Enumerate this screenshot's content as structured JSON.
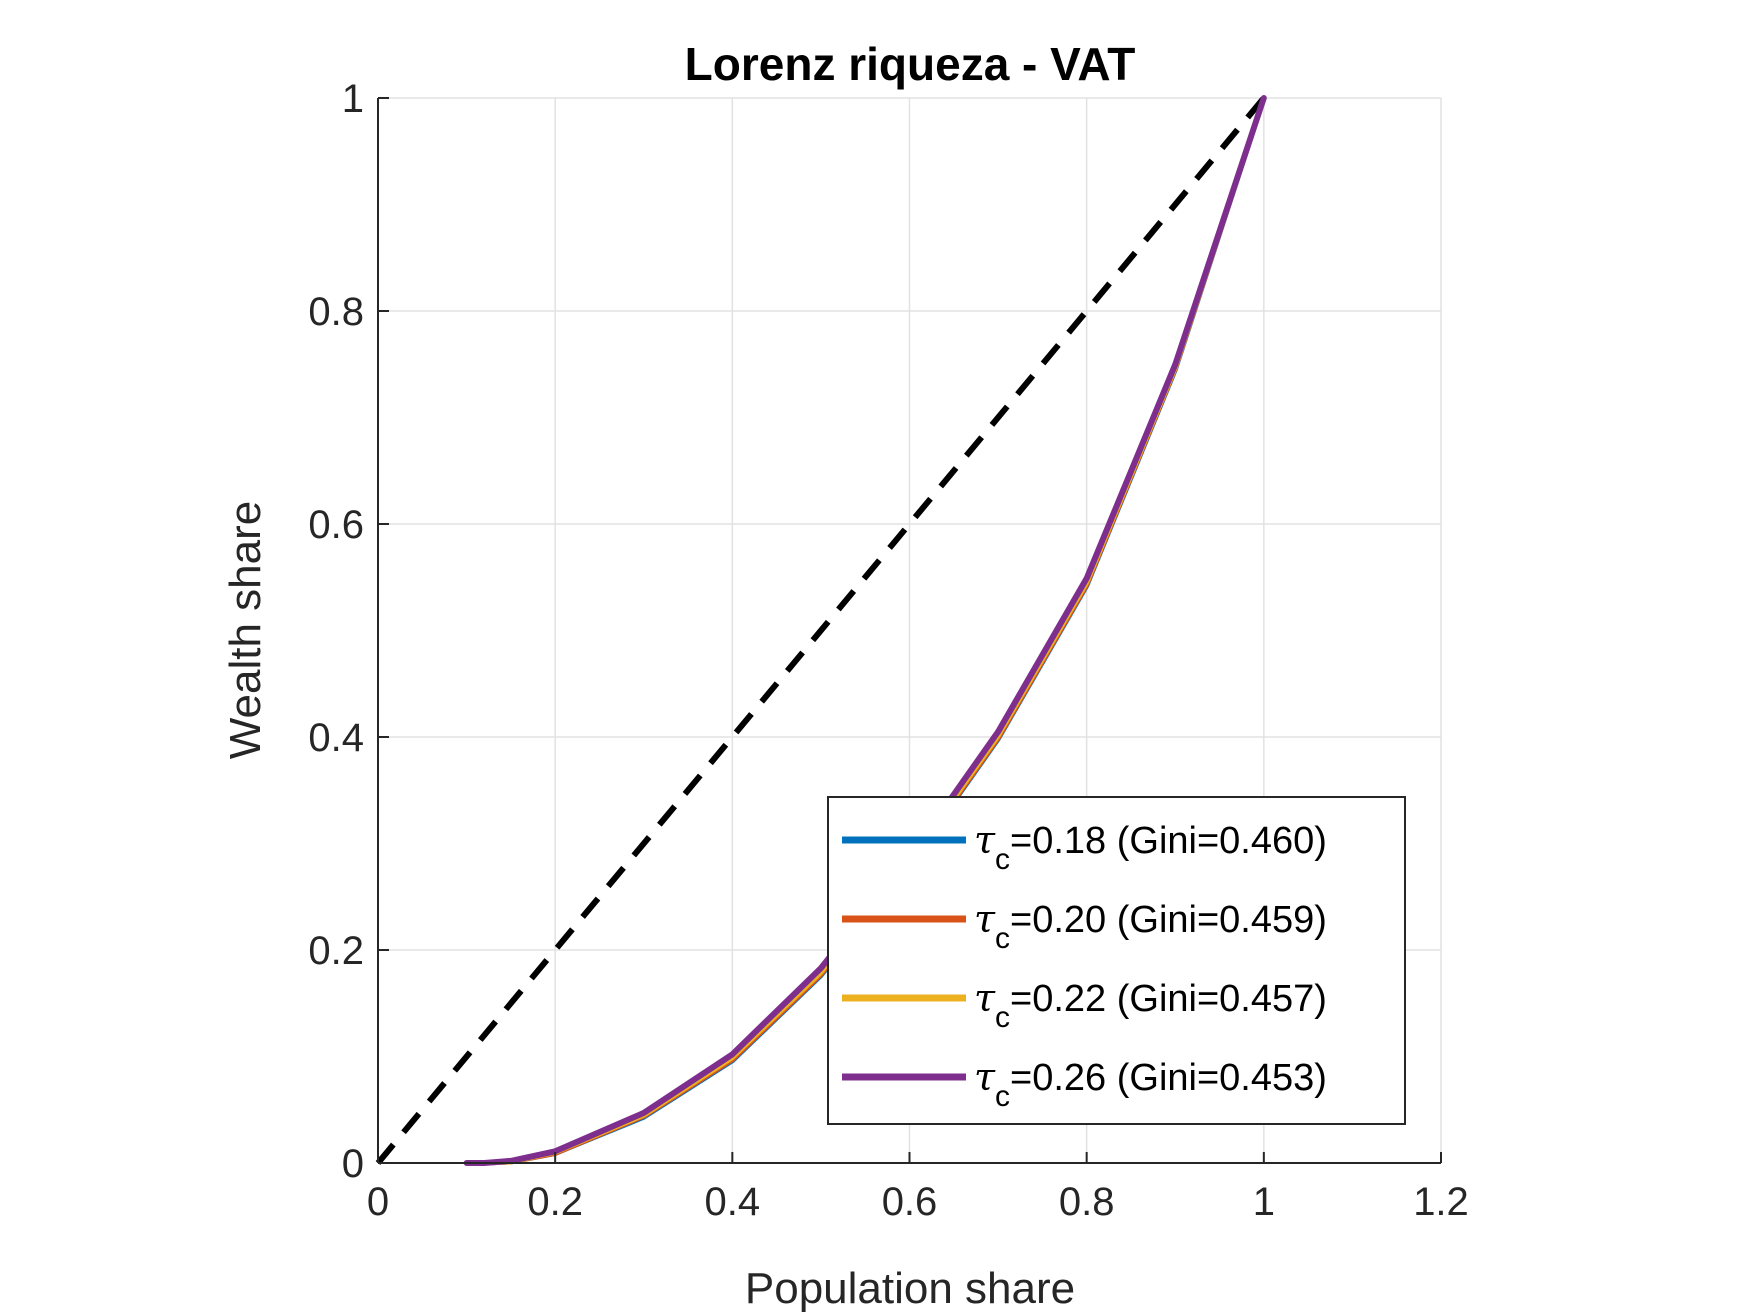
{
  "chart_data": {
    "type": "line",
    "title": "Lorenz riqueza - VAT",
    "xlabel": "Population share",
    "ylabel": "Wealth share",
    "xlim": [
      0,
      1.2
    ],
    "ylim": [
      0,
      1
    ],
    "xticks": [
      0,
      0.2,
      0.4,
      0.6,
      0.8,
      1,
      1.2
    ],
    "xtick_labels": [
      "0",
      "0.2",
      "0.4",
      "0.6",
      "0.8",
      "1",
      "1.2"
    ],
    "yticks": [
      0,
      0.2,
      0.4,
      0.6,
      0.8,
      1
    ],
    "ytick_labels": [
      "0",
      "0.2",
      "0.4",
      "0.6",
      "0.8",
      "1"
    ],
    "grid": true,
    "legend_position": "bottom-right",
    "equality_line": {
      "x": [
        0,
        1
      ],
      "y": [
        0,
        1
      ],
      "color": "#000000",
      "style": "dashed"
    },
    "series": [
      {
        "name_symbol": "τ",
        "name_sub": "c",
        "name_rest": "=0.18 (Gini=0.460)",
        "color": "#0072BD",
        "x": [
          0.1,
          0.12,
          0.15,
          0.2,
          0.3,
          0.4,
          0.5,
          0.6,
          0.7,
          0.8,
          0.9,
          1.0
        ],
        "y": [
          0.0,
          0.0,
          0.001,
          0.009,
          0.043,
          0.096,
          0.176,
          0.28,
          0.398,
          0.542,
          0.745,
          1.0
        ]
      },
      {
        "name_symbol": "τ",
        "name_sub": "c",
        "name_rest": "=0.20 (Gini=0.459)",
        "color": "#D95319",
        "x": [
          0.1,
          0.12,
          0.15,
          0.2,
          0.3,
          0.4,
          0.5,
          0.6,
          0.7,
          0.8,
          0.9,
          1.0
        ],
        "y": [
          0.0,
          0.0,
          0.001,
          0.009,
          0.044,
          0.097,
          0.177,
          0.281,
          0.399,
          0.543,
          0.746,
          1.0
        ]
      },
      {
        "name_symbol": "τ",
        "name_sub": "c",
        "name_rest": "=0.22 (Gini=0.457)",
        "color": "#EDB120",
        "x": [
          0.1,
          0.12,
          0.15,
          0.2,
          0.3,
          0.4,
          0.5,
          0.6,
          0.7,
          0.8,
          0.9,
          1.0
        ],
        "y": [
          0.0,
          0.0,
          0.001,
          0.01,
          0.045,
          0.099,
          0.179,
          0.283,
          0.401,
          0.545,
          0.747,
          1.0
        ]
      },
      {
        "name_symbol": "τ",
        "name_sub": "c",
        "name_rest": "=0.26 (Gini=0.453)",
        "color": "#7E2F8E",
        "x": [
          0.1,
          0.12,
          0.15,
          0.2,
          0.3,
          0.4,
          0.5,
          0.6,
          0.7,
          0.8,
          0.9,
          1.0
        ],
        "y": [
          0.0,
          0.0,
          0.002,
          0.011,
          0.047,
          0.102,
          0.183,
          0.287,
          0.405,
          0.549,
          0.75,
          1.0
        ]
      }
    ]
  }
}
